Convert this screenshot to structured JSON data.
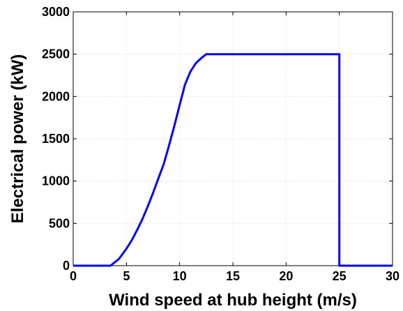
{
  "chart_data": {
    "type": "line",
    "xlabel": "Wind speed at hub height (m/s)",
    "ylabel": "Electrical power (kW)",
    "xlim": [
      0,
      30
    ],
    "ylim": [
      0,
      3000
    ],
    "xticks": [
      0,
      5,
      10,
      15,
      20,
      25,
      30
    ],
    "yticks": [
      0,
      500,
      1000,
      1500,
      2000,
      2500,
      3000
    ],
    "grid": true,
    "series": [
      {
        "color": "#0000ff",
        "x": [
          0,
          3.5,
          3.8,
          4.3,
          5.0,
          5.5,
          6.0,
          6.5,
          7.0,
          7.5,
          8.0,
          8.5,
          9.0,
          9.5,
          10.0,
          10.5,
          11.0,
          11.5,
          12.0,
          12.5,
          13.0,
          15.0,
          20.0,
          25.0,
          25.0,
          30.0
        ],
        "y": [
          0,
          0,
          30,
          80,
          200,
          300,
          420,
          550,
          700,
          860,
          1030,
          1200,
          1420,
          1650,
          1900,
          2140,
          2290,
          2390,
          2450,
          2500,
          2500,
          2500,
          2500,
          2500,
          0,
          0
        ]
      }
    ]
  }
}
